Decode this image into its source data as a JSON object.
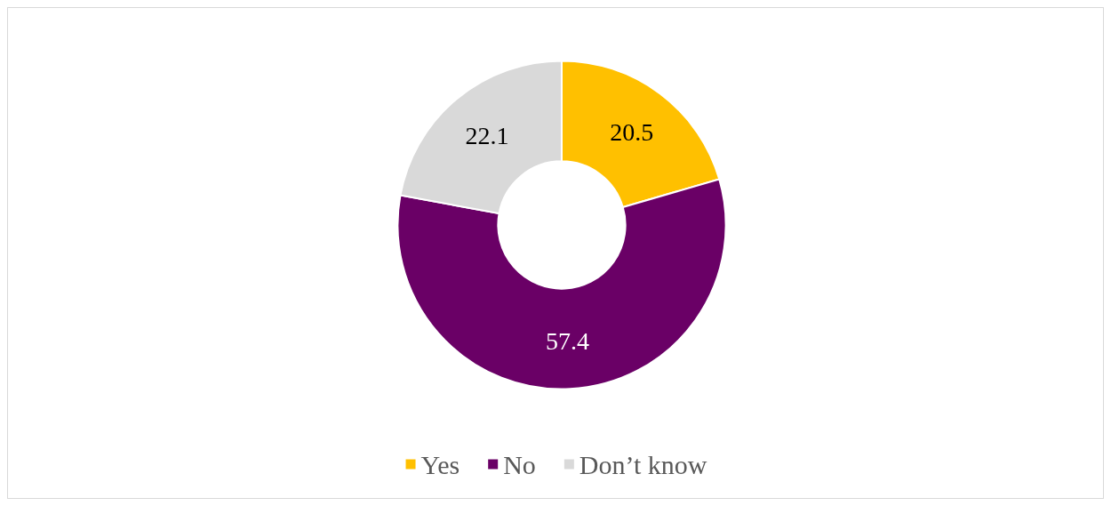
{
  "chart_data": {
    "type": "donut",
    "categories": [
      "Yes",
      "No",
      "Don’t know"
    ],
    "values": [
      20.5,
      57.4,
      22.1
    ],
    "colors": [
      "#ffc000",
      "#6a0066",
      "#d9d9d9"
    ],
    "data_labels": true,
    "legend": "bottom"
  }
}
